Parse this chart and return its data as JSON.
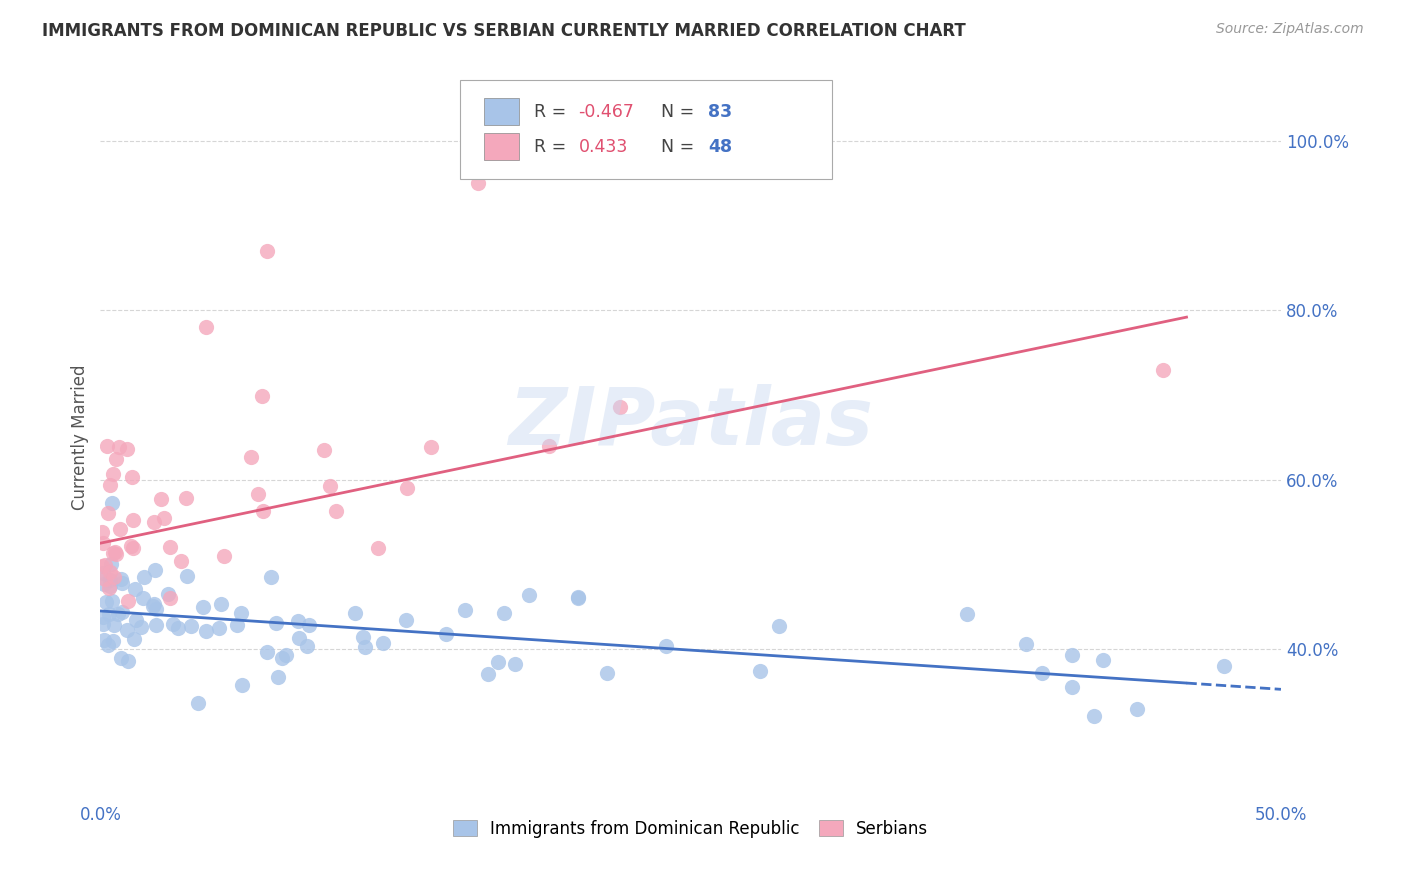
{
  "title": "IMMIGRANTS FROM DOMINICAN REPUBLIC VS SERBIAN CURRENTLY MARRIED CORRELATION CHART",
  "source": "Source: ZipAtlas.com",
  "ylabel": "Currently Married",
  "xlim": [
    0.0,
    0.5
  ],
  "ylim": [
    0.22,
    1.08
  ],
  "blue_R": -0.467,
  "blue_N": 83,
  "pink_R": 0.433,
  "pink_N": 48,
  "blue_color": "#a8c4e8",
  "pink_color": "#f4a8bc",
  "blue_line_color": "#4472c4",
  "pink_line_color": "#e06080",
  "legend_label_blue": "Immigrants from Dominican Republic",
  "legend_label_pink": "Serbians",
  "watermark": "ZIPatlas",
  "blue_intercept": 0.445,
  "blue_slope": -0.185,
  "pink_intercept": 0.525,
  "pink_slope": 0.58,
  "ytick_vals": [
    0.4,
    0.6,
    0.8,
    1.0
  ],
  "ytick_labels": [
    "40.0%",
    "60.0%",
    "80.0%",
    "100.0%"
  ],
  "xtick_labels_show": [
    "0.0%",
    "50.0%"
  ]
}
